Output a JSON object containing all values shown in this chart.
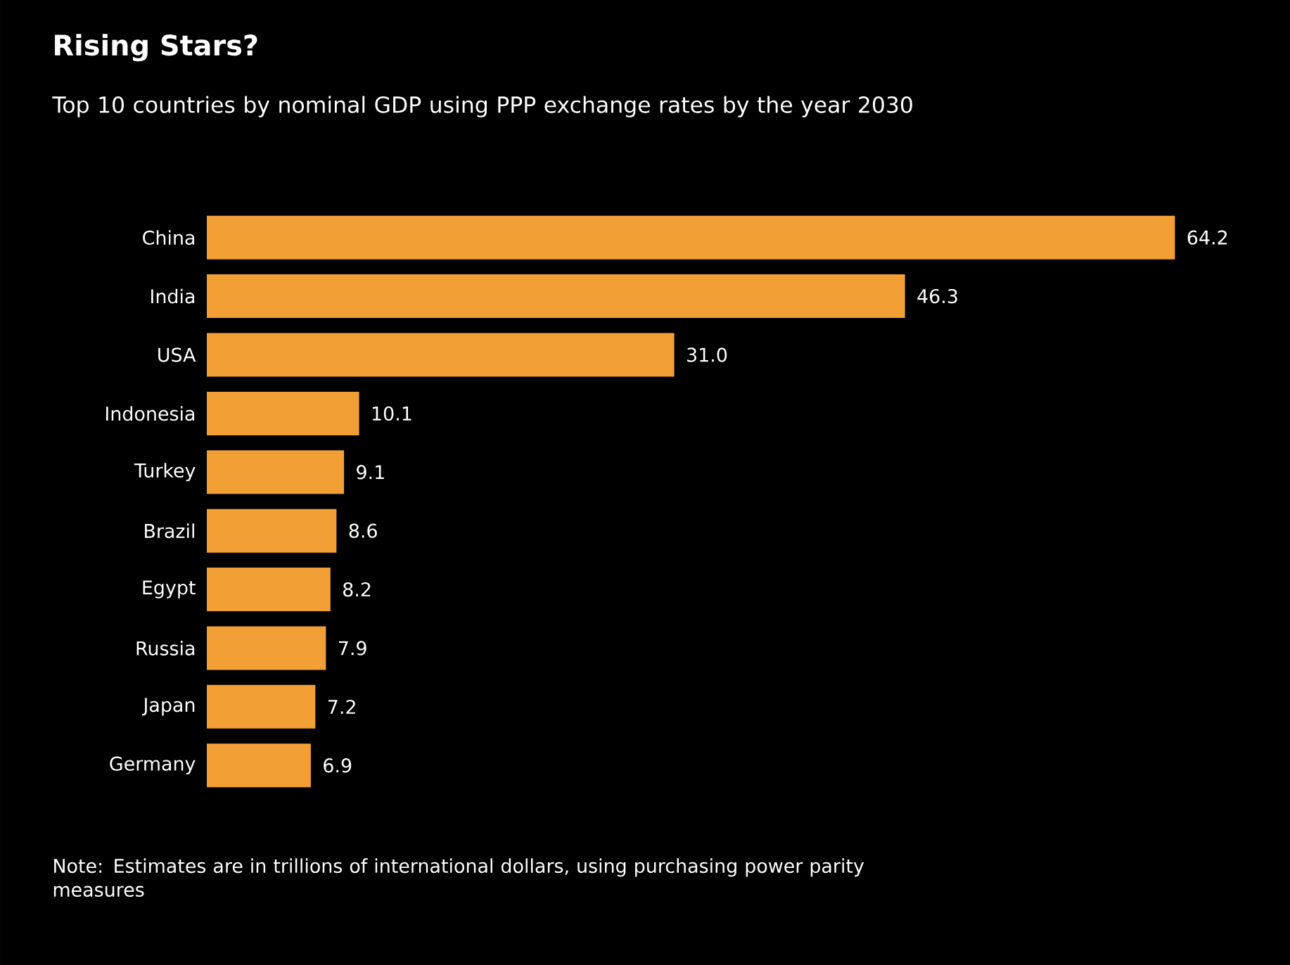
{
  "chart_data": {
    "type": "bar",
    "orientation": "horizontal",
    "title": "Rising Stars?",
    "subtitle": "Top 10 countries by nominal GDP using PPP exchange rates by the year 2030",
    "categories": [
      "China",
      "India",
      "USA",
      "Indonesia",
      "Turkey",
      "Brazil",
      "Egypt",
      "Russia",
      "Japan",
      "Germany"
    ],
    "values": [
      64.2,
      46.3,
      31.0,
      10.1,
      9.1,
      8.6,
      8.2,
      7.9,
      7.2,
      6.9
    ],
    "value_labels": [
      "64.2",
      "46.3",
      "31.0",
      "10.1",
      "9.1",
      "8.6",
      "8.2",
      "7.9",
      "7.2",
      "6.9"
    ],
    "color": "#f2a035",
    "annotations": [
      "Note: Estimates are in trillions of international dollars, using purchasing power parity measures"
    ]
  }
}
